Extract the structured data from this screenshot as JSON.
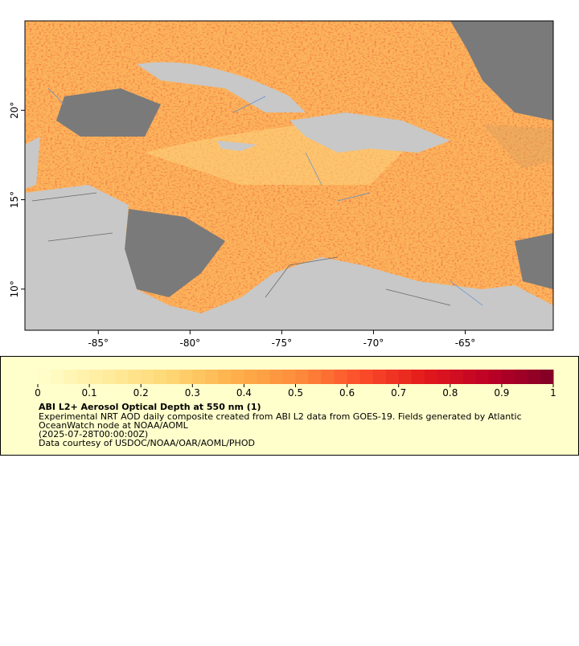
{
  "map": {
    "lonlim": [
      -89,
      -60.2
    ],
    "latlim": [
      7.7,
      25
    ],
    "lon_ticks": [
      {
        "value": -85,
        "label": "-85°"
      },
      {
        "value": -80,
        "label": "-80°"
      },
      {
        "value": -75,
        "label": "-75°"
      },
      {
        "value": -70,
        "label": "-70°"
      },
      {
        "value": -65,
        "label": "-65°"
      }
    ],
    "lat_ticks": [
      {
        "value": 10,
        "label": "10°"
      },
      {
        "value": 15,
        "label": "15°"
      },
      {
        "value": 20,
        "label": "20°"
      }
    ]
  },
  "colorbar": {
    "lim": [
      0,
      1
    ],
    "ticks": [
      0,
      0.1,
      0.2,
      0.3,
      0.4,
      0.5,
      0.6,
      0.7,
      0.8,
      0.9,
      1
    ],
    "colors": [
      "#ffffcc",
      "#ffeda0",
      "#fed976",
      "#feb24c",
      "#fd8d3c",
      "#fc4e2a",
      "#e31a1c",
      "#bd0026",
      "#800026"
    ]
  },
  "legend": {
    "title": "ABI L2+ Aerosol Optical Depth at 550 nm (1)",
    "lines": [
      "Experimental NRT AOD daily composite created from ABI L2 data from GOES-19. Fields generated by Atlantic",
      "OceanWatch node at NOAA/AOML",
      "(2025-07-28T00:00:00Z)",
      "Data courtesy of USDOC/NOAA/OAR/AOML/PHOD"
    ]
  }
}
